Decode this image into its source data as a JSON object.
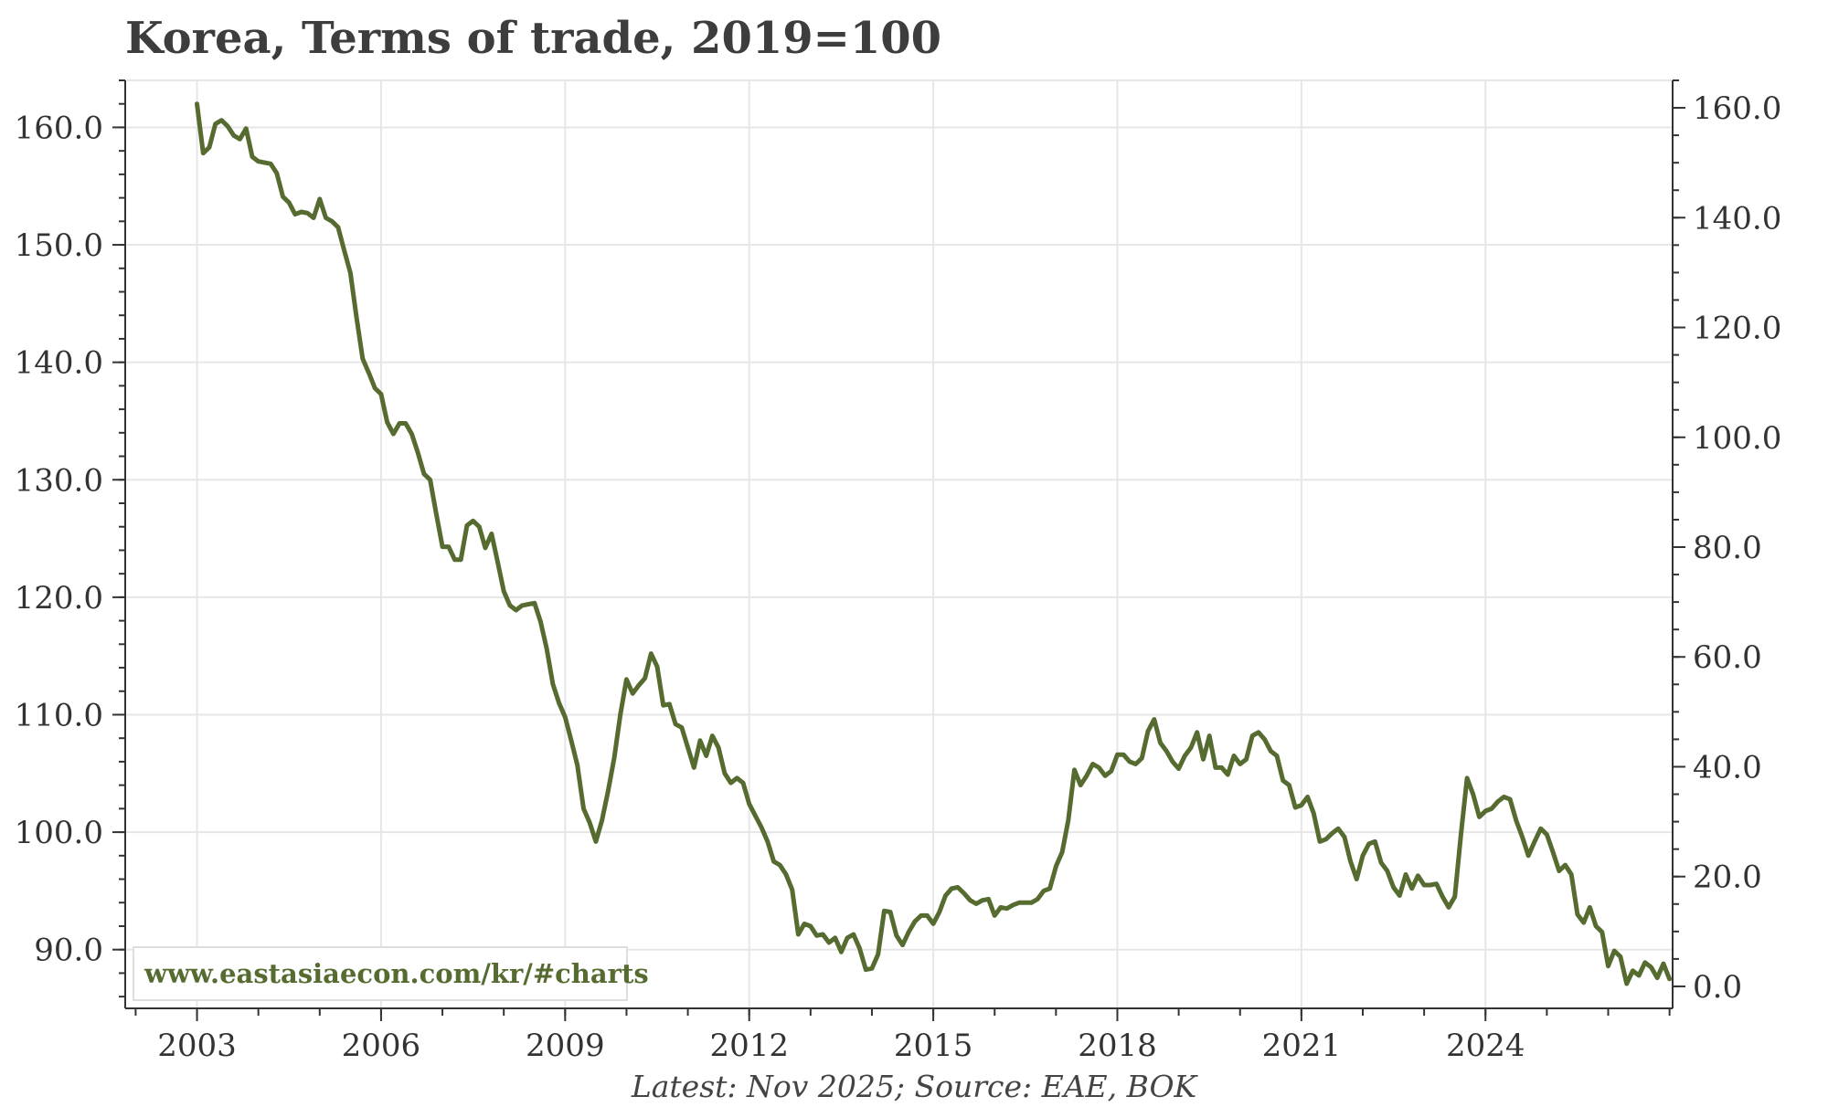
{
  "title": "Korea, Terms of trade, 2019=100",
  "footer": "Latest: Nov 2025; Source: EAE, BOK",
  "watermark": "www.eastasiaecon.com/kr/#charts",
  "colors": {
    "line": "#556b2f",
    "grid": "#e6e6e6",
    "axis": "#333333",
    "watermark_text": "#556b2f"
  },
  "chart_data": {
    "type": "line",
    "title": "Korea, Terms of trade, 2019=100",
    "xlabel": "",
    "ylabel": "",
    "grid": true,
    "x_ticks": [
      "2003",
      "2006",
      "2009",
      "2012",
      "2015",
      "2018",
      "2021",
      "2024"
    ],
    "x_tick_values": [
      2003,
      2006,
      2009,
      2012,
      2015,
      2018,
      2021,
      2024
    ],
    "xlim": [
      2001.83,
      2027.05
    ],
    "y_left_ticks": [
      "90.0",
      "100.0",
      "110.0",
      "120.0",
      "130.0",
      "140.0",
      "150.0",
      "160.0"
    ],
    "y_left_tick_values": [
      90,
      100,
      110,
      120,
      130,
      140,
      150,
      160
    ],
    "ylim_left": [
      85,
      164
    ],
    "y_right_ticks": [
      "0.0",
      "20.0",
      "40.0",
      "60.0",
      "80.0",
      "100.0",
      "120.0",
      "140.0",
      "160.0"
    ],
    "y_right_tick_values": [
      0,
      20,
      40,
      60,
      80,
      100,
      120,
      140,
      160
    ],
    "ylim_right": [
      -4,
      165
    ],
    "series": [
      {
        "axis": "left",
        "points": [
          [
            2003.0,
            162.0
          ],
          [
            2003.1,
            157.8
          ],
          [
            2003.2,
            158.3
          ],
          [
            2003.3,
            160.3
          ],
          [
            2003.4,
            160.6
          ],
          [
            2003.5,
            160.1
          ],
          [
            2003.6,
            159.3
          ],
          [
            2003.7,
            159.0
          ],
          [
            2003.8,
            159.9
          ],
          [
            2003.9,
            157.5
          ],
          [
            2004.0,
            157.1
          ],
          [
            2004.2,
            156.9
          ],
          [
            2004.3,
            156.1
          ],
          [
            2004.4,
            154.1
          ],
          [
            2004.5,
            153.6
          ],
          [
            2004.6,
            152.6
          ],
          [
            2004.7,
            152.8
          ],
          [
            2004.8,
            152.7
          ],
          [
            2004.9,
            152.3
          ],
          [
            2005.0,
            153.9
          ],
          [
            2005.1,
            152.3
          ],
          [
            2005.2,
            152.0
          ],
          [
            2005.3,
            151.5
          ],
          [
            2005.4,
            149.5
          ],
          [
            2005.5,
            147.6
          ],
          [
            2005.6,
            143.8
          ],
          [
            2005.7,
            140.3
          ],
          [
            2005.8,
            139.1
          ],
          [
            2005.9,
            137.8
          ],
          [
            2006.0,
            137.3
          ],
          [
            2006.1,
            134.9
          ],
          [
            2006.2,
            133.9
          ],
          [
            2006.3,
            134.8
          ],
          [
            2006.4,
            134.8
          ],
          [
            2006.5,
            133.9
          ],
          [
            2006.6,
            132.3
          ],
          [
            2006.7,
            130.5
          ],
          [
            2006.8,
            130.0
          ],
          [
            2006.9,
            127.1
          ],
          [
            2007.0,
            124.3
          ],
          [
            2007.1,
            124.3
          ],
          [
            2007.2,
            123.2
          ],
          [
            2007.3,
            123.2
          ],
          [
            2007.4,
            126.1
          ],
          [
            2007.5,
            126.5
          ],
          [
            2007.6,
            126.0
          ],
          [
            2007.7,
            124.2
          ],
          [
            2007.8,
            125.4
          ],
          [
            2007.9,
            123.0
          ],
          [
            2008.0,
            120.5
          ],
          [
            2008.1,
            119.3
          ],
          [
            2008.2,
            118.9
          ],
          [
            2008.3,
            119.3
          ],
          [
            2008.4,
            119.4
          ],
          [
            2008.5,
            119.5
          ],
          [
            2008.6,
            117.9
          ],
          [
            2008.7,
            115.6
          ],
          [
            2008.8,
            112.6
          ],
          [
            2008.9,
            111.0
          ],
          [
            2009.0,
            109.8
          ],
          [
            2009.1,
            107.8
          ],
          [
            2009.2,
            105.7
          ],
          [
            2009.3,
            102.0
          ],
          [
            2009.4,
            100.8
          ],
          [
            2009.5,
            99.2
          ],
          [
            2009.6,
            101.0
          ],
          [
            2009.7,
            103.5
          ],
          [
            2009.8,
            106.3
          ],
          [
            2009.9,
            110.0
          ],
          [
            2010.0,
            113.0
          ],
          [
            2010.1,
            111.8
          ],
          [
            2010.2,
            112.5
          ],
          [
            2010.3,
            113.1
          ],
          [
            2010.4,
            115.2
          ],
          [
            2010.5,
            114.1
          ],
          [
            2010.6,
            110.8
          ],
          [
            2010.7,
            110.9
          ],
          [
            2010.8,
            109.2
          ],
          [
            2010.9,
            108.9
          ],
          [
            2011.0,
            107.2
          ],
          [
            2011.1,
            105.5
          ],
          [
            2011.2,
            107.8
          ],
          [
            2011.3,
            106.5
          ],
          [
            2011.4,
            108.2
          ],
          [
            2011.5,
            107.2
          ],
          [
            2011.6,
            105.0
          ],
          [
            2011.7,
            104.2
          ],
          [
            2011.8,
            104.6
          ],
          [
            2011.9,
            104.2
          ],
          [
            2012.0,
            102.4
          ],
          [
            2012.1,
            101.4
          ],
          [
            2012.2,
            100.4
          ],
          [
            2012.3,
            99.2
          ],
          [
            2012.4,
            97.5
          ],
          [
            2012.5,
            97.2
          ],
          [
            2012.6,
            96.4
          ],
          [
            2012.7,
            95.1
          ],
          [
            2012.8,
            91.3
          ],
          [
            2012.9,
            92.2
          ],
          [
            2013.0,
            92.0
          ],
          [
            2013.1,
            91.2
          ],
          [
            2013.2,
            91.3
          ],
          [
            2013.3,
            90.6
          ],
          [
            2013.4,
            91.0
          ],
          [
            2013.5,
            89.8
          ],
          [
            2013.6,
            91.0
          ],
          [
            2013.7,
            91.3
          ],
          [
            2013.8,
            90.1
          ],
          [
            2013.9,
            88.3
          ],
          [
            2014.0,
            88.4
          ],
          [
            2014.1,
            89.6
          ],
          [
            2014.2,
            93.3
          ],
          [
            2014.3,
            93.2
          ],
          [
            2014.4,
            91.2
          ],
          [
            2014.5,
            90.4
          ],
          [
            2014.6,
            91.5
          ],
          [
            2014.7,
            92.4
          ],
          [
            2014.8,
            92.9
          ],
          [
            2014.9,
            92.9
          ],
          [
            2015.0,
            92.2
          ],
          [
            2015.1,
            93.2
          ],
          [
            2015.2,
            94.6
          ],
          [
            2015.3,
            95.2
          ],
          [
            2015.4,
            95.3
          ],
          [
            2015.5,
            94.8
          ],
          [
            2015.6,
            94.2
          ],
          [
            2015.7,
            93.9
          ],
          [
            2015.8,
            94.2
          ],
          [
            2015.9,
            94.3
          ],
          [
            2016.0,
            92.9
          ],
          [
            2016.1,
            93.6
          ],
          [
            2016.2,
            93.5
          ],
          [
            2016.3,
            93.8
          ],
          [
            2016.4,
            94.0
          ],
          [
            2016.5,
            94.0
          ],
          [
            2016.6,
            94.0
          ],
          [
            2016.7,
            94.3
          ],
          [
            2016.8,
            95.0
          ],
          [
            2016.9,
            95.2
          ],
          [
            2017.0,
            97.1
          ],
          [
            2017.1,
            98.3
          ],
          [
            2017.2,
            101.0
          ],
          [
            2017.3,
            105.3
          ],
          [
            2017.4,
            104.0
          ],
          [
            2017.5,
            104.8
          ],
          [
            2017.6,
            105.8
          ],
          [
            2017.7,
            105.5
          ],
          [
            2017.8,
            104.8
          ],
          [
            2017.9,
            105.2
          ],
          [
            2018.0,
            106.6
          ],
          [
            2018.1,
            106.6
          ],
          [
            2018.2,
            106.0
          ],
          [
            2018.3,
            105.8
          ],
          [
            2018.4,
            106.3
          ],
          [
            2018.5,
            108.6
          ],
          [
            2018.6,
            109.6
          ],
          [
            2018.7,
            107.6
          ],
          [
            2018.8,
            106.9
          ],
          [
            2018.9,
            106.0
          ],
          [
            2019.0,
            105.4
          ],
          [
            2019.1,
            106.5
          ],
          [
            2019.2,
            107.2
          ],
          [
            2019.3,
            108.5
          ],
          [
            2019.4,
            106.2
          ],
          [
            2019.5,
            108.2
          ],
          [
            2019.6,
            105.5
          ],
          [
            2019.7,
            105.5
          ],
          [
            2019.8,
            104.9
          ],
          [
            2019.9,
            106.5
          ],
          [
            2020.0,
            105.8
          ],
          [
            2020.1,
            106.2
          ],
          [
            2020.2,
            108.2
          ],
          [
            2020.3,
            108.5
          ],
          [
            2020.4,
            107.9
          ],
          [
            2020.5,
            106.9
          ],
          [
            2020.6,
            106.5
          ],
          [
            2020.7,
            104.4
          ],
          [
            2020.8,
            104.0
          ],
          [
            2020.9,
            102.1
          ],
          [
            2021.0,
            102.3
          ],
          [
            2021.1,
            103.0
          ],
          [
            2021.2,
            101.6
          ],
          [
            2021.3,
            99.2
          ],
          [
            2021.4,
            99.4
          ],
          [
            2021.5,
            99.9
          ],
          [
            2021.6,
            100.3
          ],
          [
            2021.7,
            99.6
          ],
          [
            2021.8,
            97.5
          ],
          [
            2021.9,
            96.0
          ],
          [
            2022.0,
            98.0
          ],
          [
            2022.1,
            99.0
          ],
          [
            2022.2,
            99.2
          ],
          [
            2022.3,
            97.4
          ],
          [
            2022.4,
            96.7
          ],
          [
            2022.5,
            95.3
          ],
          [
            2022.6,
            94.6
          ],
          [
            2022.7,
            96.4
          ],
          [
            2022.8,
            95.2
          ],
          [
            2022.9,
            96.3
          ],
          [
            2023.0,
            95.5
          ],
          [
            2023.1,
            95.5
          ],
          [
            2023.2,
            95.6
          ],
          [
            2023.3,
            94.5
          ],
          [
            2023.4,
            93.6
          ],
          [
            2023.5,
            94.5
          ],
          [
            2023.6,
            99.8
          ],
          [
            2023.7,
            104.6
          ],
          [
            2023.8,
            103.2
          ],
          [
            2023.9,
            101.3
          ],
          [
            2024.0,
            101.8
          ],
          [
            2024.1,
            102.0
          ],
          [
            2024.2,
            102.6
          ],
          [
            2024.3,
            103.0
          ],
          [
            2024.4,
            102.8
          ],
          [
            2024.5,
            101.0
          ],
          [
            2024.6,
            99.6
          ],
          [
            2024.7,
            98.0
          ],
          [
            2024.8,
            99.2
          ],
          [
            2024.9,
            100.3
          ],
          [
            2025.0,
            99.8
          ],
          [
            2025.1,
            98.3
          ],
          [
            2025.2,
            96.7
          ],
          [
            2025.3,
            97.2
          ],
          [
            2025.4,
            96.4
          ],
          [
            2025.5,
            93.0
          ],
          [
            2025.6,
            92.3
          ],
          [
            2025.7,
            93.6
          ],
          [
            2025.8,
            92.0
          ],
          [
            2025.9,
            91.5
          ],
          [
            2026.0,
            88.6
          ],
          [
            2026.1,
            89.9
          ],
          [
            2026.2,
            89.4
          ],
          [
            2026.3,
            87.1
          ],
          [
            2026.4,
            88.2
          ],
          [
            2026.5,
            87.8
          ],
          [
            2026.6,
            88.9
          ],
          [
            2026.7,
            88.5
          ],
          [
            2026.8,
            87.6
          ],
          [
            2026.9,
            88.8
          ],
          [
            2027.0,
            87.5
          ]
        ]
      }
    ]
  }
}
